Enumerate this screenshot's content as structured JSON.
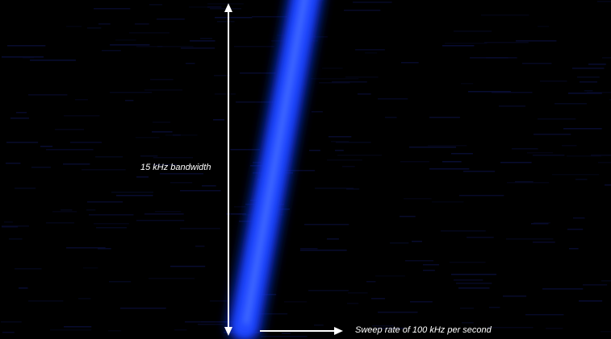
{
  "annotations": {
    "bandwidth_label": "15 kHz bandwidth",
    "sweep_label": "Sweep rate of 100 kHz per second"
  },
  "icons": {
    "vertical_arrow": "double-headed-vertical-arrow-icon",
    "horizontal_arrow": "right-arrow-icon"
  },
  "colors": {
    "background": "#000000",
    "signal": "#1a3cff",
    "signal_core": "#4f7bff",
    "noise": "#0a0f3a",
    "annotation": "#ffffff"
  }
}
